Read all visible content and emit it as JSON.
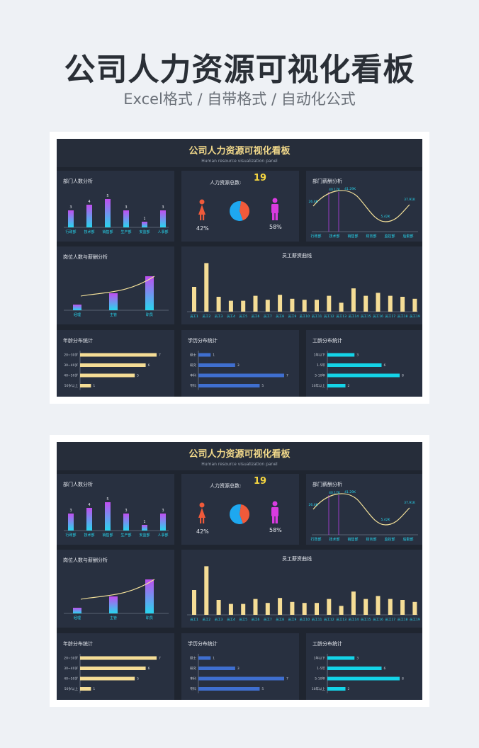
{
  "page": {
    "title": "公司人力资源可视化看板",
    "subtitle": "Excel格式 / 自带格式 / 自动化公式"
  },
  "dashboard": {
    "title": "公司人力资源可视化看板",
    "subtitle": "Human resource visualization panel",
    "dept_headcount": {
      "title": "部门人数分析",
      "departments": [
        "行政部",
        "技术部",
        "销售部",
        "生产部",
        "安监部",
        "人事部"
      ],
      "values": [
        3,
        4,
        5,
        3,
        1,
        3
      ]
    },
    "total": {
      "label": "人力资源总数:",
      "value": "19",
      "female_pct": "42%",
      "male_pct": "58%",
      "female_share": 42,
      "male_share": 58
    },
    "dept_salary": {
      "title": "部门薪酬分析",
      "departments": [
        "行政部",
        "技术部",
        "销售部",
        "财务部",
        "监控部",
        "后勤部"
      ],
      "point_labels": [
        "26.4K",
        "40.17K",
        "41.29K",
        "",
        "5.42K",
        "37.91K"
      ]
    },
    "position": {
      "title": "岗位人数与薪酬分析",
      "positions": [
        "经理",
        "主管",
        "职员"
      ],
      "values": [
        1,
        3,
        6
      ]
    },
    "salary_curve": {
      "title": "员工薪资曲线",
      "employees": [
        "员工1",
        "员工2",
        "员工3",
        "员工4",
        "员工5",
        "员工6",
        "员工7",
        "员工8",
        "员工9",
        "员工10",
        "员工11",
        "员工12",
        "员工13",
        "员工14",
        "员工15",
        "员工16",
        "员工17",
        "员工18",
        "员工19"
      ],
      "values": [
        5,
        9.8,
        3,
        2.2,
        2.2,
        3.2,
        2.4,
        3.4,
        2.6,
        2.4,
        2.4,
        3.2,
        1.8,
        4.7,
        3.2,
        3.8,
        3.2,
        3,
        2.6
      ]
    },
    "age": {
      "title": "年龄分布统计",
      "groups": [
        "20~30岁",
        "30~40岁",
        "40~50岁",
        "50岁以上"
      ],
      "values": [
        7,
        6,
        5,
        1
      ]
    },
    "education": {
      "title": "学历分布统计",
      "groups": [
        "硕士",
        "研究",
        "本科",
        "专科"
      ],
      "values": [
        1,
        3,
        7,
        5
      ]
    },
    "seniority": {
      "title": "工龄分布统计",
      "groups": [
        "1年以下",
        "1-5年",
        "5-10年",
        "10年以上"
      ],
      "values": [
        3,
        6,
        8,
        2
      ]
    }
  },
  "colors": {
    "background": "#eef1f5",
    "dash_bg": "#1f2530",
    "panel_bg": "#283040",
    "title_gold": "#f2d98a",
    "gradient_top": "#c04ef0",
    "gradient_bottom": "#27d6ee",
    "curve": "#f5e29a",
    "salary_bar": "#f5dd96",
    "age_bar": "#f5dd96",
    "edu_bar": "#3f6fd0",
    "tenure_bar": "#14d4e8",
    "female": "#f05a3a",
    "male": "#d93be0",
    "pie_blue": "#1ea8f0"
  },
  "icons": [
    "female-icon",
    "male-icon"
  ]
}
